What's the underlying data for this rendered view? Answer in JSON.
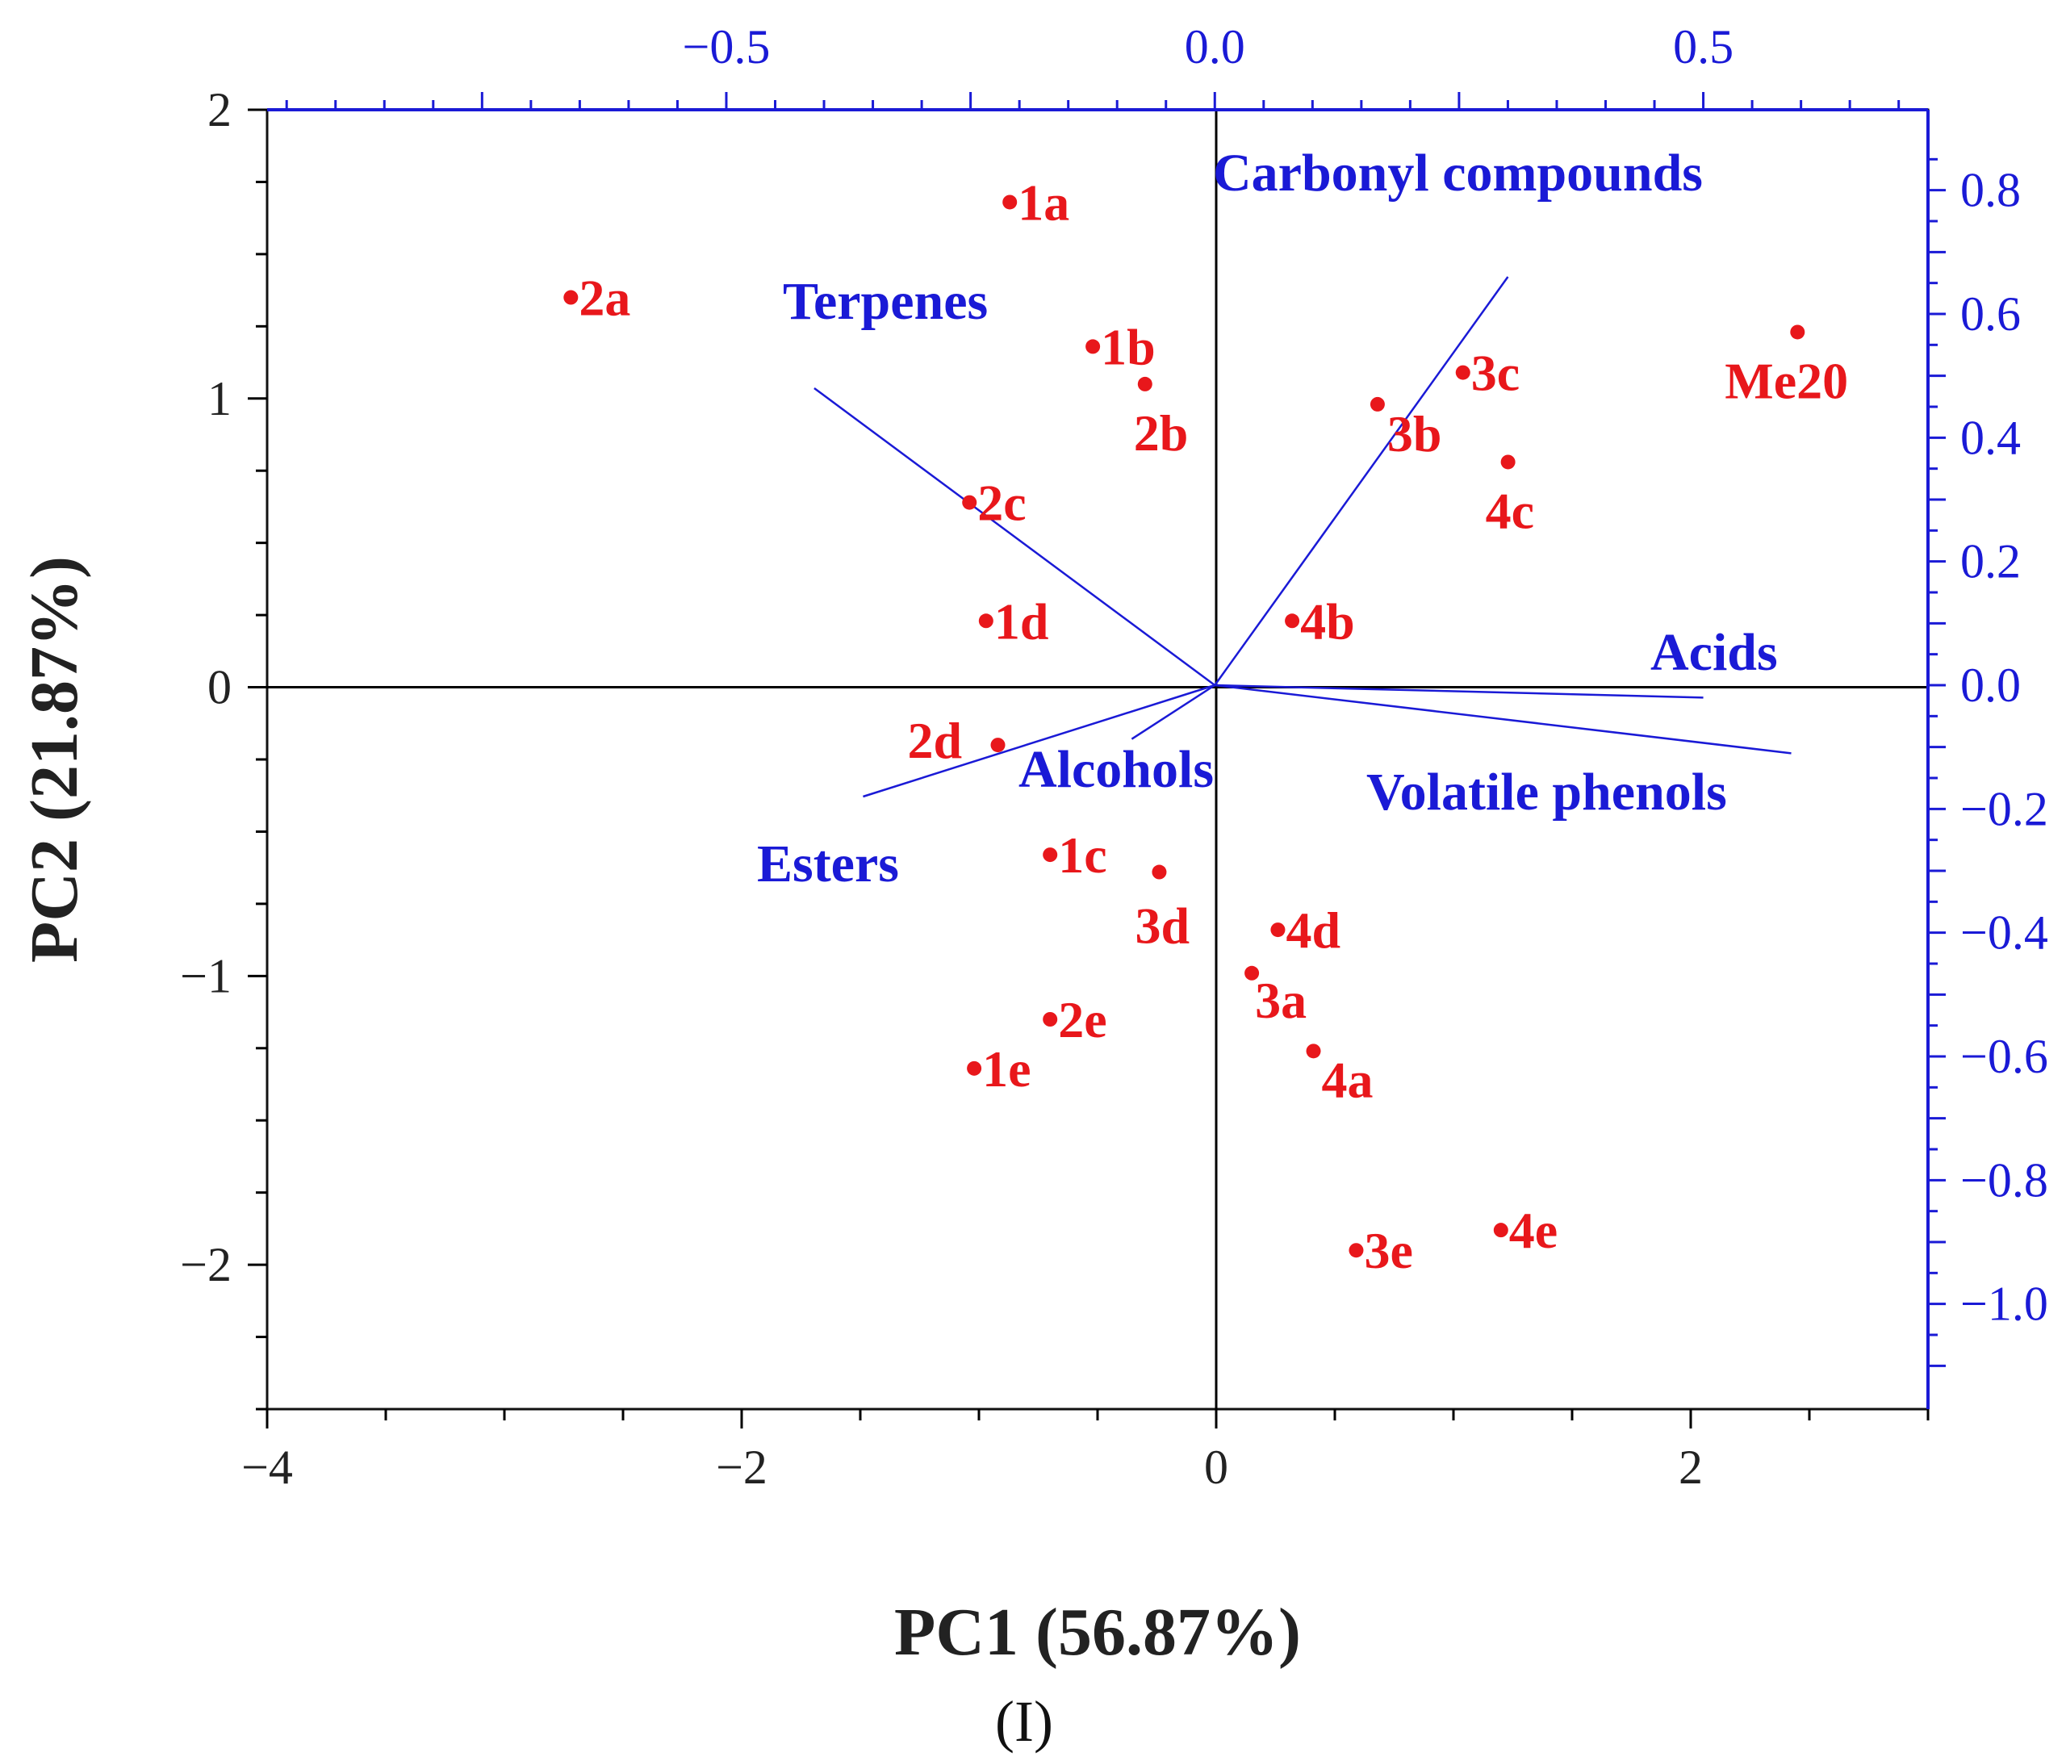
{
  "chart_data": {
    "type": "scatter",
    "subtype": "pca-biplot",
    "xlabel": "PC1 (56.87%)",
    "ylabel": "PC2 (21.87%)",
    "panel_label": "(I)",
    "score_axes": {
      "xlim": [
        -4,
        3
      ],
      "ylim": [
        -2.5,
        2
      ],
      "xticks": [
        -4,
        -2,
        0,
        2
      ],
      "yticks": [
        -2,
        -1,
        0,
        1,
        2
      ],
      "xtick_labels": [
        "−4",
        "−2",
        "0",
        "2"
      ],
      "ytick_labels": [
        "−2",
        "−1",
        "0",
        "1",
        "2"
      ]
    },
    "loading_axes": {
      "xlim": [
        -0.97,
        0.73
      ],
      "ylim": [
        -1.17,
        0.93
      ],
      "xticks": [
        -0.5,
        0.0,
        0.5
      ],
      "yticks": [
        -1.0,
        -0.8,
        -0.6,
        -0.4,
        -0.2,
        0.0,
        0.2,
        0.4,
        0.6,
        0.8
      ],
      "xtick_labels": [
        "−0.5",
        "0.0",
        "0.5"
      ],
      "ytick_labels": [
        "−1.0",
        "−0.8",
        "−0.6",
        "−0.4",
        "−0.2",
        "0.0",
        "0.2",
        "0.4",
        "0.6",
        "0.8"
      ],
      "color": "#1a1ad6"
    },
    "scores": [
      {
        "label": "1a",
        "x": -0.87,
        "y": 1.68
      },
      {
        "label": "2a",
        "x": -2.72,
        "y": 1.35
      },
      {
        "label": "1b",
        "x": -0.52,
        "y": 1.18
      },
      {
        "label": "2b",
        "x": -0.3,
        "y": 1.05
      },
      {
        "label": "2c",
        "x": -1.04,
        "y": 0.64
      },
      {
        "label": "1d",
        "x": -0.97,
        "y": 0.23
      },
      {
        "label": "2d",
        "x": -0.92,
        "y": -0.2
      },
      {
        "label": "1c",
        "x": -0.7,
        "y": -0.58
      },
      {
        "label": "3d",
        "x": -0.24,
        "y": -0.64
      },
      {
        "label": "4d",
        "x": 0.26,
        "y": -0.84
      },
      {
        "label": "3a",
        "x": 0.15,
        "y": -0.99
      },
      {
        "label": "2e",
        "x": -0.7,
        "y": -1.15
      },
      {
        "label": "1e",
        "x": -1.02,
        "y": -1.32
      },
      {
        "label": "4a",
        "x": 0.41,
        "y": -1.26
      },
      {
        "label": "3e",
        "x": 0.59,
        "y": -1.95
      },
      {
        "label": "4e",
        "x": 1.2,
        "y": -1.88
      },
      {
        "label": "3b",
        "x": 0.68,
        "y": 0.98
      },
      {
        "label": "3c",
        "x": 1.04,
        "y": 1.09
      },
      {
        "label": "4c",
        "x": 1.23,
        "y": 0.78
      },
      {
        "label": "4b",
        "x": 0.32,
        "y": 0.23
      },
      {
        "label": "Me20",
        "x": 2.45,
        "y": 1.23
      }
    ],
    "loadings": [
      {
        "label": "Carbonyl compounds",
        "x": 0.3,
        "y": 0.66
      },
      {
        "label": "Terpenes",
        "x": -0.41,
        "y": 0.48
      },
      {
        "label": "Acids",
        "x": 0.5,
        "y": -0.02
      },
      {
        "label": "Volatile phenols",
        "x": 0.59,
        "y": -0.11
      },
      {
        "label": "Alcohols",
        "x": -0.085,
        "y": -0.087
      },
      {
        "label": "Esters",
        "x": -0.36,
        "y": -0.18
      }
    ]
  }
}
